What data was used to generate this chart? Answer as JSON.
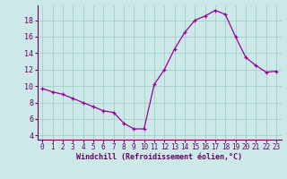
{
  "hours": [
    0,
    1,
    2,
    3,
    4,
    5,
    6,
    7,
    8,
    9,
    10,
    11,
    12,
    13,
    14,
    15,
    16,
    17,
    18,
    19,
    20,
    21,
    22,
    23
  ],
  "windchill": [
    9.7,
    9.3,
    9.0,
    8.5,
    8.0,
    7.5,
    7.0,
    6.8,
    5.5,
    4.8,
    4.8,
    10.2,
    12.0,
    14.5,
    16.5,
    18.0,
    18.5,
    19.2,
    18.7,
    16.0,
    13.5,
    12.5,
    11.7,
    11.8
  ],
  "xlabel": "Windchill (Refroidissement éolien,°C)",
  "ylim": [
    3.5,
    19.8
  ],
  "yticks": [
    4,
    6,
    8,
    10,
    12,
    14,
    16,
    18
  ],
  "xticks": [
    0,
    1,
    2,
    3,
    4,
    5,
    6,
    7,
    8,
    9,
    10,
    11,
    12,
    13,
    14,
    15,
    16,
    17,
    18,
    19,
    20,
    21,
    22,
    23
  ],
  "line_color": "#990099",
  "marker_color": "#990099",
  "bg_color": "#cce8e8",
  "grid_color": "#99ccbb",
  "axis_color": "#660066",
  "text_color": "#660066",
  "tick_fontsize": 5.5,
  "xlabel_fontsize": 6.0
}
